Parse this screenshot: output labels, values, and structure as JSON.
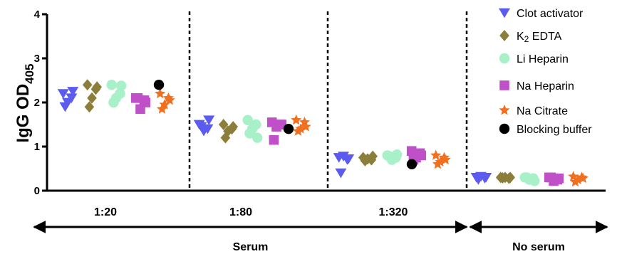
{
  "chart_data": {
    "type": "scatter",
    "ylabel": "IgG OD",
    "ylabel_subscript": "405",
    "ylim": [
      0,
      4
    ],
    "yticks": [
      "0",
      "1",
      "2",
      "3",
      "4"
    ],
    "dilutions": [
      "1:20",
      "1:80",
      "1:320",
      ""
    ],
    "groups": [
      {
        "label": "Serum",
        "span": [
          0,
          2
        ]
      },
      {
        "label": "No serum",
        "span": [
          3,
          3
        ]
      }
    ],
    "series": [
      {
        "name": "Clot activator",
        "marker": "triangle-down",
        "color": "#5B5BF0",
        "points": [
          {
            "dilution": 0,
            "values": [
              2.2,
              2.1,
              2.0,
              1.9,
              2.25
            ]
          },
          {
            "dilution": 1,
            "values": [
              1.5,
              1.4,
              1.35,
              1.45,
              1.6
            ]
          },
          {
            "dilution": 2,
            "values": [
              0.75,
              0.7,
              0.78,
              0.4,
              0.72
            ]
          },
          {
            "dilution": 3,
            "values": [
              0.3,
              0.28,
              0.32,
              0.25,
              0.3
            ]
          }
        ]
      },
      {
        "name": "K2 EDTA",
        "label_main": "K",
        "label_sub": "2",
        "label_rest": " EDTA",
        "marker": "diamond",
        "color": "#8B7D3A",
        "points": [
          {
            "dilution": 0,
            "values": [
              2.4,
              2.3,
              2.1,
              1.9,
              2.35
            ]
          },
          {
            "dilution": 1,
            "values": [
              1.5,
              1.4,
              1.35,
              1.2,
              1.45
            ]
          },
          {
            "dilution": 2,
            "values": [
              0.75,
              0.7,
              0.72,
              0.68,
              0.78
            ]
          },
          {
            "dilution": 3,
            "values": [
              0.3,
              0.28,
              0.3,
              0.29,
              0.3
            ]
          }
        ]
      },
      {
        "name": "Li Heparin",
        "marker": "circle",
        "color": "#A8F0C8",
        "points": [
          {
            "dilution": 0,
            "values": [
              2.4,
              2.2,
              2.1,
              2.0,
              2.38
            ]
          },
          {
            "dilution": 1,
            "values": [
              1.6,
              1.5,
              1.4,
              1.3,
              1.2
            ]
          },
          {
            "dilution": 2,
            "values": [
              0.8,
              0.75,
              0.7,
              0.78,
              0.82
            ]
          },
          {
            "dilution": 3,
            "values": [
              0.3,
              0.28,
              0.25,
              0.3,
              0.22
            ]
          }
        ]
      },
      {
        "name": "Na Heparin",
        "marker": "square",
        "color": "#C050C8",
        "points": [
          {
            "dilution": 0,
            "values": [
              2.1,
              2.05,
              1.85,
              2.1,
              2.0
            ]
          },
          {
            "dilution": 1,
            "values": [
              1.55,
              1.5,
              1.45,
              1.15,
              1.5
            ]
          },
          {
            "dilution": 2,
            "values": [
              0.9,
              0.85,
              0.75,
              0.7,
              0.8
            ]
          },
          {
            "dilution": 3,
            "values": [
              0.3,
              0.25,
              0.22,
              0.3,
              0.28
            ]
          }
        ]
      },
      {
        "name": "Na Citrate",
        "marker": "star",
        "color": "#F07020",
        "points": [
          {
            "dilution": 0,
            "values": [
              2.2,
              2.1,
              1.95,
              1.85,
              2.05
            ]
          },
          {
            "dilution": 1,
            "values": [
              1.6,
              1.55,
              1.4,
              1.35,
              1.45
            ]
          },
          {
            "dilution": 2,
            "values": [
              0.8,
              0.75,
              0.65,
              0.6,
              0.7
            ]
          },
          {
            "dilution": 3,
            "values": [
              0.32,
              0.3,
              0.25,
              0.2,
              0.28
            ]
          }
        ]
      },
      {
        "name": "Blocking buffer",
        "marker": "circle",
        "color": "#000000",
        "points": [
          {
            "dilution": 0,
            "values": [
              2.4
            ]
          },
          {
            "dilution": 1,
            "values": [
              1.4
            ]
          },
          {
            "dilution": 2,
            "values": [
              0.6
            ]
          }
        ]
      }
    ],
    "legend": "top-right",
    "grid": false
  }
}
